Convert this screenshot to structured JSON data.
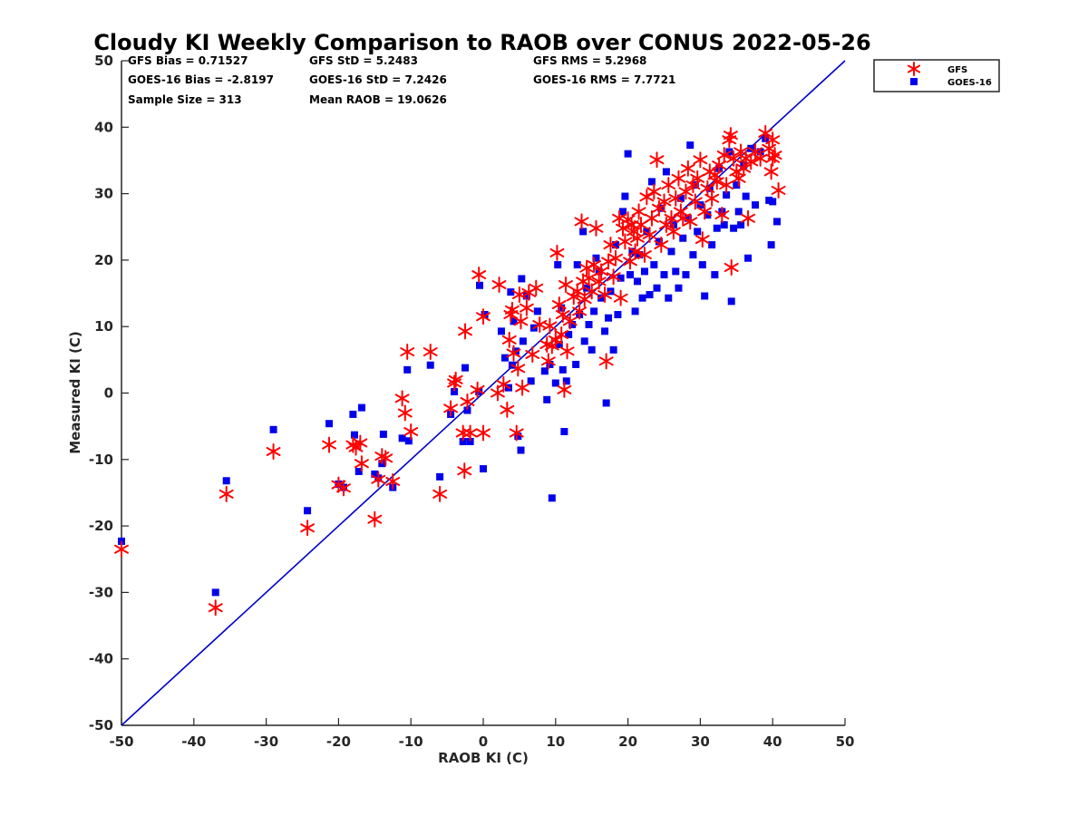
{
  "chart_data": {
    "type": "scatter",
    "title": "Cloudy KI Weekly Comparison to RAOB over CONUS 2022-05-26",
    "xlabel": "RAOB KI (C)",
    "ylabel": "Measured KI (C)",
    "xlim": [
      -50,
      50
    ],
    "ylim": [
      -50,
      50
    ],
    "xticks": [
      "-50",
      "-40",
      "-30",
      "-20",
      "-10",
      "0",
      "10",
      "20",
      "30",
      "40",
      "50"
    ],
    "yticks": [
      "-50",
      "-40",
      "-30",
      "-20",
      "-10",
      "0",
      "10",
      "20",
      "30",
      "40",
      "50"
    ],
    "grid": false,
    "legend_position": "outside-top-right",
    "reference_line": {
      "from": [
        -50,
        -50
      ],
      "to": [
        50,
        50
      ],
      "color": "#0000cc"
    },
    "stats": [
      [
        "GFS Bias = 0.71527",
        "GFS StD = 5.2483",
        "GFS RMS = 5.2968"
      ],
      [
        "GOES-16 Bias = -2.8197",
        "GOES-16 StD = 7.2426",
        "GOES-16 RMS = 7.7721"
      ],
      [
        "Sample Size = 313",
        "Mean RAOB = 19.0626"
      ]
    ],
    "series": [
      {
        "name": "GFS",
        "marker": "asterisk",
        "color": "#ff0000",
        "points": [
          [
            -50,
            -23.5
          ],
          [
            -37,
            -32.3
          ],
          [
            -35.5,
            -15.2
          ],
          [
            -29,
            -8.8
          ],
          [
            -24.3,
            -20.3
          ],
          [
            -21.3,
            -7.8
          ],
          [
            -20,
            -13.8
          ],
          [
            -19.3,
            -14.3
          ],
          [
            -18,
            -7.8
          ],
          [
            -17.6,
            -8.2
          ],
          [
            -17,
            -7.5
          ],
          [
            -16.8,
            -10.6
          ],
          [
            -15,
            -19
          ],
          [
            -14.5,
            -13
          ],
          [
            -14,
            -9.5
          ],
          [
            -13.5,
            -9.8
          ],
          [
            -12.5,
            -13.3
          ],
          [
            -11.2,
            -0.8
          ],
          [
            -10.8,
            -3
          ],
          [
            -10.5,
            6.2
          ],
          [
            -10,
            -5.8
          ],
          [
            -7.3,
            6.2
          ],
          [
            -6,
            -15.2
          ],
          [
            -4.5,
            -2.3
          ],
          [
            -4,
            1.5
          ],
          [
            -3.8,
            2
          ],
          [
            -2.8,
            -6
          ],
          [
            -2.6,
            -11.7
          ],
          [
            -2.5,
            9.3
          ],
          [
            -2.2,
            -1.3
          ],
          [
            -1.8,
            -6
          ],
          [
            -0.8,
            0.5
          ],
          [
            0,
            -6
          ],
          [
            -0.6,
            17.8
          ],
          [
            0,
            11.5
          ],
          [
            2,
            0
          ],
          [
            2.2,
            16.3
          ],
          [
            2.8,
            1.3
          ],
          [
            3.3,
            -2.5
          ],
          [
            3.6,
            8
          ],
          [
            3.8,
            11.8
          ],
          [
            4,
            12.5
          ],
          [
            4.2,
            6
          ],
          [
            4.6,
            -6
          ],
          [
            4.8,
            3.7
          ],
          [
            5,
            14.8
          ],
          [
            5.2,
            10.8
          ],
          [
            5.4,
            0.8
          ],
          [
            6,
            12.8
          ],
          [
            6.3,
            15.1
          ],
          [
            6.8,
            5.8
          ],
          [
            7.3,
            15.8
          ],
          [
            7.8,
            10.3
          ],
          [
            8.8,
            7.3
          ],
          [
            9,
            4.8
          ],
          [
            9.2,
            10.1
          ],
          [
            9.5,
            7.1
          ],
          [
            10,
            8
          ],
          [
            10.2,
            21.1
          ],
          [
            10.5,
            13.3
          ],
          [
            10.8,
            8.8
          ],
          [
            11,
            11.8
          ],
          [
            11.2,
            0.5
          ],
          [
            11.4,
            16.3
          ],
          [
            11.6,
            6.3
          ],
          [
            12,
            10.8
          ],
          [
            12.5,
            14.5
          ],
          [
            13,
            15.3
          ],
          [
            13.3,
            12.3
          ],
          [
            13.6,
            25.8
          ],
          [
            13.8,
            16.8
          ],
          [
            14,
            14.1
          ],
          [
            14.3,
            18.8
          ],
          [
            14.6,
            17.3
          ],
          [
            15,
            15.3
          ],
          [
            15.3,
            19.3
          ],
          [
            15.6,
            24.8
          ],
          [
            16,
            16.8
          ],
          [
            16.3,
            18.3
          ],
          [
            16.8,
            14.8
          ],
          [
            17,
            4.8
          ],
          [
            17.3,
            19.8
          ],
          [
            17.6,
            22.3
          ],
          [
            18,
            17.5
          ],
          [
            18.3,
            20.3
          ],
          [
            18.8,
            26.3
          ],
          [
            19,
            14.3
          ],
          [
            19.3,
            24.8
          ],
          [
            19.6,
            22.8
          ],
          [
            20,
            26.1
          ],
          [
            20.3,
            19.8
          ],
          [
            20.5,
            25.3
          ],
          [
            20.8,
            24.3
          ],
          [
            21,
            21.3
          ],
          [
            21.3,
            23.3
          ],
          [
            21.5,
            27.3
          ],
          [
            21.8,
            25.3
          ],
          [
            22.3,
            20.8
          ],
          [
            22.6,
            29.5
          ],
          [
            23,
            23.8
          ],
          [
            23.3,
            26.3
          ],
          [
            23.6,
            30.3
          ],
          [
            24,
            35.1
          ],
          [
            24.3,
            27.8
          ],
          [
            24.6,
            22.3
          ],
          [
            25,
            28.8
          ],
          [
            25.3,
            25.3
          ],
          [
            25.6,
            31.3
          ],
          [
            26,
            26.3
          ],
          [
            26.3,
            24.3
          ],
          [
            26.6,
            29.3
          ],
          [
            27,
            32.3
          ],
          [
            27.3,
            27.3
          ],
          [
            27.6,
            26.3
          ],
          [
            28,
            30.3
          ],
          [
            28.3,
            33.8
          ],
          [
            28.6,
            25.8
          ],
          [
            29,
            31.3
          ],
          [
            29.3,
            28.8
          ],
          [
            29.6,
            32.3
          ],
          [
            30,
            35.1
          ],
          [
            30.3,
            23.1
          ],
          [
            30.6,
            27.3
          ],
          [
            31,
            30.8
          ],
          [
            31.3,
            33.3
          ],
          [
            31.6,
            29.3
          ],
          [
            32,
            32.8
          ],
          [
            32.3,
            31.8
          ],
          [
            32.6,
            34.3
          ],
          [
            33,
            26.8
          ],
          [
            33.3,
            35.8
          ],
          [
            33.6,
            31.3
          ],
          [
            34,
            38.1
          ],
          [
            34.2,
            38.8
          ],
          [
            34.3,
            18.9
          ],
          [
            34.6,
            35.3
          ],
          [
            35,
            33.3
          ],
          [
            35.3,
            32.3
          ],
          [
            35.6,
            36.3
          ],
          [
            36,
            33.8
          ],
          [
            36.3,
            35.3
          ],
          [
            36.6,
            26.3
          ],
          [
            37,
            34.8
          ],
          [
            37.6,
            36.3
          ],
          [
            38.3,
            35.3
          ],
          [
            39,
            39.1
          ],
          [
            39.5,
            36.8
          ],
          [
            39.8,
            33.3
          ],
          [
            40,
            38.1
          ],
          [
            40.3,
            35.8
          ],
          [
            40.8,
            30.5
          ],
          [
            40,
            35.3
          ]
        ]
      },
      {
        "name": "GOES-16",
        "marker": "square",
        "color": "#0000ee",
        "points": [
          [
            -50,
            -22.3
          ],
          [
            -37,
            -30
          ],
          [
            -35.5,
            -13.2
          ],
          [
            -29,
            -5.5
          ],
          [
            -24.3,
            -17.7
          ],
          [
            -21.3,
            -4.6
          ],
          [
            -20,
            -13.7
          ],
          [
            -19.3,
            -14.2
          ],
          [
            -18,
            -3.2
          ],
          [
            -17.8,
            -6.3
          ],
          [
            -17.2,
            -11.8
          ],
          [
            -16.8,
            -2.2
          ],
          [
            -15,
            -12.2
          ],
          [
            -14.5,
            -12.8
          ],
          [
            -14,
            -10.6
          ],
          [
            -13.8,
            -6.2
          ],
          [
            -12.5,
            -14.2
          ],
          [
            -11.2,
            -6.8
          ],
          [
            -10.3,
            -7.2
          ],
          [
            -10.5,
            3.5
          ],
          [
            -7.3,
            4.2
          ],
          [
            -6,
            -12.6
          ],
          [
            -4.5,
            -3.2
          ],
          [
            -4,
            0.2
          ],
          [
            -2.8,
            -7.3
          ],
          [
            -2.5,
            3.8
          ],
          [
            -2.2,
            -2.6
          ],
          [
            -1.8,
            -7.3
          ],
          [
            -0.6,
            0.2
          ],
          [
            0,
            -11.4
          ],
          [
            -0.5,
            16.2
          ],
          [
            0.2,
            11.8
          ],
          [
            2.5,
            9.3
          ],
          [
            3,
            5.3
          ],
          [
            3.5,
            0.8
          ],
          [
            3.8,
            15.2
          ],
          [
            4,
            4.2
          ],
          [
            4.2,
            10.8
          ],
          [
            4.5,
            6.3
          ],
          [
            4.8,
            -6.5
          ],
          [
            5.2,
            -8.6
          ],
          [
            5.3,
            17.2
          ],
          [
            5.5,
            7.8
          ],
          [
            6,
            14.6
          ],
          [
            6.6,
            1.8
          ],
          [
            7,
            9.8
          ],
          [
            7.5,
            12.3
          ],
          [
            8.5,
            3.3
          ],
          [
            8.8,
            -1
          ],
          [
            9.2,
            4.3
          ],
          [
            9.5,
            -15.8
          ],
          [
            10,
            1.5
          ],
          [
            10.3,
            19.3
          ],
          [
            10.5,
            7.3
          ],
          [
            10.8,
            12.8
          ],
          [
            11,
            3.5
          ],
          [
            11.2,
            -5.8
          ],
          [
            11.5,
            1.8
          ],
          [
            11.8,
            8.8
          ],
          [
            12.3,
            10.3
          ],
          [
            12.8,
            4.3
          ],
          [
            13,
            19.3
          ],
          [
            13.3,
            11.8
          ],
          [
            13.8,
            24.3
          ],
          [
            14,
            7.8
          ],
          [
            14.3,
            15.8
          ],
          [
            14.6,
            10.3
          ],
          [
            15,
            6.5
          ],
          [
            15.3,
            12.3
          ],
          [
            15.6,
            20.3
          ],
          [
            16,
            18.3
          ],
          [
            16.3,
            14.3
          ],
          [
            16.8,
            9.3
          ],
          [
            17,
            -1.5
          ],
          [
            17.3,
            11.3
          ],
          [
            17.6,
            15.3
          ],
          [
            18,
            6.5
          ],
          [
            18.3,
            22.3
          ],
          [
            18.6,
            11.8
          ],
          [
            19,
            17.3
          ],
          [
            19.3,
            27.3
          ],
          [
            19.6,
            29.6
          ],
          [
            20,
            36
          ],
          [
            20.3,
            17.8
          ],
          [
            20.6,
            21.3
          ],
          [
            21,
            12.3
          ],
          [
            21.3,
            16.8
          ],
          [
            21.6,
            20.8
          ],
          [
            22,
            14.3
          ],
          [
            22.3,
            18.3
          ],
          [
            22.6,
            24.3
          ],
          [
            23,
            14.8
          ],
          [
            23.3,
            31.8
          ],
          [
            23.6,
            19.3
          ],
          [
            24,
            15.8
          ],
          [
            24.3,
            22.8
          ],
          [
            24.6,
            27.8
          ],
          [
            25,
            17.8
          ],
          [
            25.3,
            33.3
          ],
          [
            25.6,
            14.3
          ],
          [
            26,
            21.3
          ],
          [
            26.3,
            25.3
          ],
          [
            26.6,
            18.3
          ],
          [
            27,
            15.8
          ],
          [
            27.3,
            29.3
          ],
          [
            27.6,
            23.3
          ],
          [
            28,
            17.8
          ],
          [
            28.3,
            26.3
          ],
          [
            28.6,
            37.3
          ],
          [
            29,
            20.8
          ],
          [
            29.3,
            31.3
          ],
          [
            29.6,
            24.3
          ],
          [
            30,
            28.3
          ],
          [
            30.3,
            19.3
          ],
          [
            30.6,
            14.6
          ],
          [
            31,
            26.8
          ],
          [
            31.3,
            30.8
          ],
          [
            31.6,
            22.3
          ],
          [
            32,
            17.8
          ],
          [
            32.3,
            24.8
          ],
          [
            32.6,
            33.8
          ],
          [
            33,
            27.3
          ],
          [
            33.3,
            25.3
          ],
          [
            33.6,
            29.8
          ],
          [
            34,
            36.3
          ],
          [
            34.3,
            13.8
          ],
          [
            34.6,
            24.8
          ],
          [
            35,
            31.3
          ],
          [
            35.3,
            27.3
          ],
          [
            35.6,
            25.3
          ],
          [
            36,
            34.3
          ],
          [
            36.3,
            29.6
          ],
          [
            36.6,
            20.3
          ],
          [
            37,
            36.8
          ],
          [
            37.6,
            28.3
          ],
          [
            38.3,
            36.3
          ],
          [
            39,
            38.3
          ],
          [
            39.5,
            29
          ],
          [
            39.8,
            22.3
          ],
          [
            40,
            28.8
          ],
          [
            40.6,
            25.8
          ]
        ]
      }
    ]
  }
}
